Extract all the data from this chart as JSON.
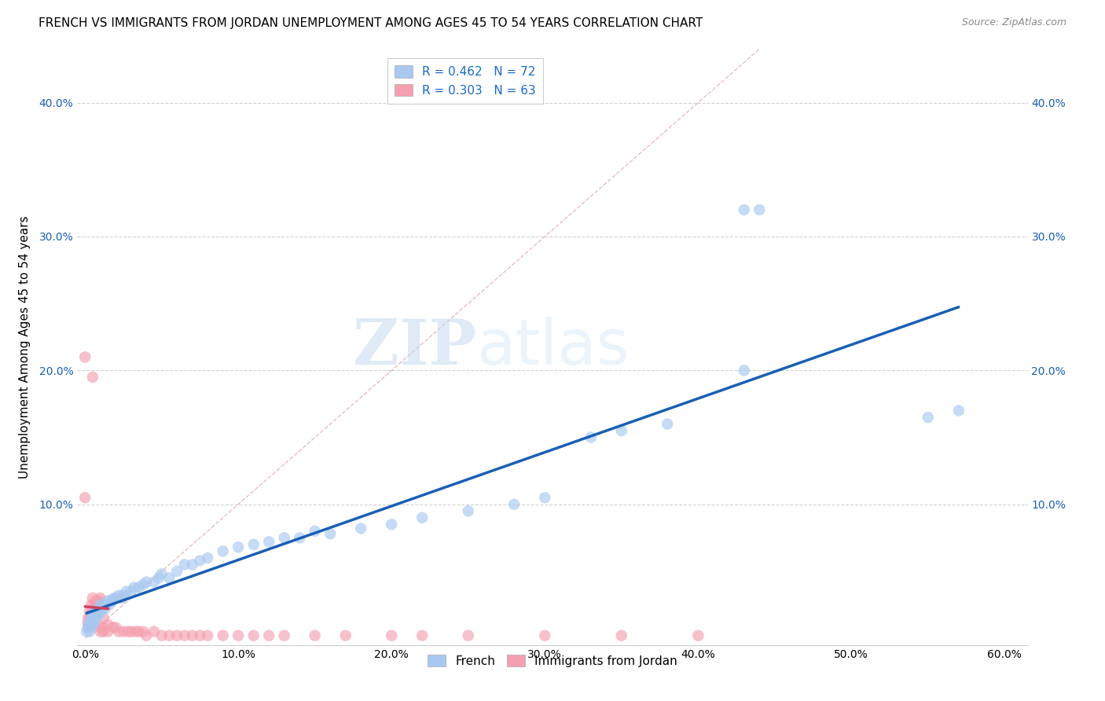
{
  "title": "FRENCH VS IMMIGRANTS FROM JORDAN UNEMPLOYMENT AMONG AGES 45 TO 54 YEARS CORRELATION CHART",
  "source": "Source: ZipAtlas.com",
  "xlabel": "",
  "ylabel": "Unemployment Among Ages 45 to 54 years",
  "xlim": [
    -0.005,
    0.615
  ],
  "ylim": [
    -0.005,
    0.44
  ],
  "xticks": [
    0.0,
    0.1,
    0.2,
    0.3,
    0.4,
    0.5,
    0.6
  ],
  "yticks": [
    0.1,
    0.2,
    0.3,
    0.4
  ],
  "ytick_labels": [
    "10.0%",
    "20.0%",
    "30.0%",
    "40.0%"
  ],
  "xtick_labels": [
    "0.0%",
    "10.0%",
    "20.0%",
    "30.0%",
    "40.0%",
    "50.0%",
    "60.0%"
  ],
  "french_R": 0.462,
  "french_N": 72,
  "jordan_R": 0.303,
  "jordan_N": 63,
  "french_color": "#a8c8f0",
  "jordan_color": "#f4a0b0",
  "french_line_color": "#1a5fb4",
  "jordan_line_color": "#d04060",
  "french_scatter": [
    [
      0.001,
      0.005
    ],
    [
      0.002,
      0.008
    ],
    [
      0.002,
      0.01
    ],
    [
      0.003,
      0.005
    ],
    [
      0.003,
      0.01
    ],
    [
      0.003,
      0.012
    ],
    [
      0.004,
      0.008
    ],
    [
      0.004,
      0.012
    ],
    [
      0.004,
      0.015
    ],
    [
      0.005,
      0.01
    ],
    [
      0.005,
      0.015
    ],
    [
      0.005,
      0.018
    ],
    [
      0.006,
      0.012
    ],
    [
      0.006,
      0.015
    ],
    [
      0.007,
      0.015
    ],
    [
      0.007,
      0.018
    ],
    [
      0.008,
      0.018
    ],
    [
      0.008,
      0.02
    ],
    [
      0.009,
      0.018
    ],
    [
      0.009,
      0.022
    ],
    [
      0.01,
      0.02
    ],
    [
      0.01,
      0.025
    ],
    [
      0.011,
      0.022
    ],
    [
      0.012,
      0.025
    ],
    [
      0.013,
      0.022
    ],
    [
      0.014,
      0.025
    ],
    [
      0.015,
      0.028
    ],
    [
      0.016,
      0.025
    ],
    [
      0.017,
      0.028
    ],
    [
      0.018,
      0.028
    ],
    [
      0.019,
      0.03
    ],
    [
      0.02,
      0.03
    ],
    [
      0.022,
      0.032
    ],
    [
      0.024,
      0.03
    ],
    [
      0.025,
      0.032
    ],
    [
      0.027,
      0.035
    ],
    [
      0.03,
      0.035
    ],
    [
      0.032,
      0.038
    ],
    [
      0.035,
      0.038
    ],
    [
      0.038,
      0.04
    ],
    [
      0.04,
      0.042
    ],
    [
      0.045,
      0.042
    ],
    [
      0.048,
      0.045
    ],
    [
      0.05,
      0.048
    ],
    [
      0.055,
      0.045
    ],
    [
      0.06,
      0.05
    ],
    [
      0.065,
      0.055
    ],
    [
      0.07,
      0.055
    ],
    [
      0.075,
      0.058
    ],
    [
      0.08,
      0.06
    ],
    [
      0.09,
      0.065
    ],
    [
      0.1,
      0.068
    ],
    [
      0.11,
      0.07
    ],
    [
      0.12,
      0.072
    ],
    [
      0.13,
      0.075
    ],
    [
      0.14,
      0.075
    ],
    [
      0.15,
      0.08
    ],
    [
      0.16,
      0.078
    ],
    [
      0.18,
      0.082
    ],
    [
      0.2,
      0.085
    ],
    [
      0.22,
      0.09
    ],
    [
      0.25,
      0.095
    ],
    [
      0.28,
      0.1
    ],
    [
      0.3,
      0.105
    ],
    [
      0.33,
      0.15
    ],
    [
      0.35,
      0.155
    ],
    [
      0.38,
      0.16
    ],
    [
      0.43,
      0.2
    ],
    [
      0.43,
      0.32
    ],
    [
      0.44,
      0.32
    ],
    [
      0.55,
      0.165
    ],
    [
      0.57,
      0.17
    ]
  ],
  "jordan_scatter": [
    [
      0.0,
      0.21
    ],
    [
      0.005,
      0.195
    ],
    [
      0.0,
      0.105
    ],
    [
      0.002,
      0.008
    ],
    [
      0.002,
      0.012
    ],
    [
      0.002,
      0.015
    ],
    [
      0.003,
      0.01
    ],
    [
      0.003,
      0.015
    ],
    [
      0.003,
      0.02
    ],
    [
      0.004,
      0.012
    ],
    [
      0.004,
      0.018
    ],
    [
      0.004,
      0.025
    ],
    [
      0.005,
      0.015
    ],
    [
      0.005,
      0.02
    ],
    [
      0.005,
      0.03
    ],
    [
      0.006,
      0.018
    ],
    [
      0.006,
      0.025
    ],
    [
      0.007,
      0.02
    ],
    [
      0.007,
      0.028
    ],
    [
      0.008,
      0.02
    ],
    [
      0.008,
      0.025
    ],
    [
      0.009,
      0.022
    ],
    [
      0.009,
      0.028
    ],
    [
      0.01,
      0.025
    ],
    [
      0.01,
      0.03
    ],
    [
      0.01,
      0.008
    ],
    [
      0.01,
      0.005
    ],
    [
      0.012,
      0.008
    ],
    [
      0.012,
      0.015
    ],
    [
      0.012,
      0.005
    ],
    [
      0.015,
      0.01
    ],
    [
      0.015,
      0.005
    ],
    [
      0.018,
      0.008
    ],
    [
      0.02,
      0.008
    ],
    [
      0.022,
      0.005
    ],
    [
      0.025,
      0.005
    ],
    [
      0.028,
      0.005
    ],
    [
      0.03,
      0.005
    ],
    [
      0.033,
      0.005
    ],
    [
      0.035,
      0.005
    ],
    [
      0.038,
      0.005
    ],
    [
      0.04,
      0.002
    ],
    [
      0.045,
      0.005
    ],
    [
      0.05,
      0.002
    ],
    [
      0.055,
      0.002
    ],
    [
      0.06,
      0.002
    ],
    [
      0.065,
      0.002
    ],
    [
      0.07,
      0.002
    ],
    [
      0.075,
      0.002
    ],
    [
      0.08,
      0.002
    ],
    [
      0.09,
      0.002
    ],
    [
      0.1,
      0.002
    ],
    [
      0.11,
      0.002
    ],
    [
      0.12,
      0.002
    ],
    [
      0.13,
      0.002
    ],
    [
      0.15,
      0.002
    ],
    [
      0.17,
      0.002
    ],
    [
      0.2,
      0.002
    ],
    [
      0.22,
      0.002
    ],
    [
      0.25,
      0.002
    ],
    [
      0.3,
      0.002
    ],
    [
      0.35,
      0.002
    ],
    [
      0.4,
      0.002
    ]
  ],
  "watermark_zip": "ZIP",
  "watermark_atlas": "atlas",
  "background_color": "#ffffff",
  "grid_color": "#cccccc",
  "diag_color": "#ddbbcc",
  "title_fontsize": 11,
  "axis_label_fontsize": 11,
  "tick_fontsize": 10,
  "legend_fontsize": 11,
  "source_fontsize": 9
}
